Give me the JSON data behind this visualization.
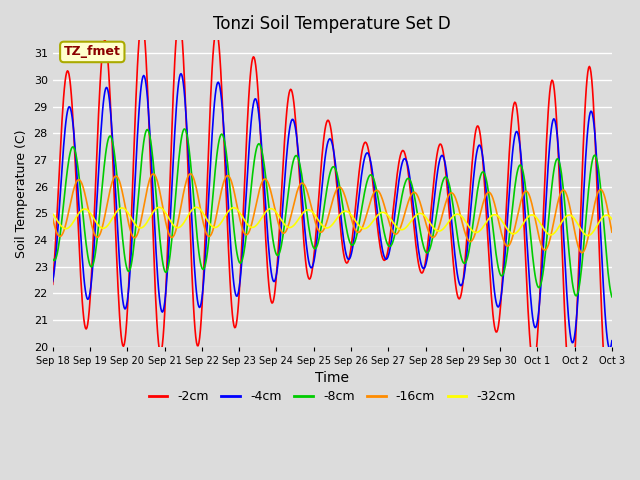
{
  "title": "Tonzi Soil Temperature Set D",
  "xlabel": "Time",
  "ylabel": "Soil Temperature (C)",
  "ylim": [
    20.0,
    31.5
  ],
  "yticks": [
    20.0,
    21.0,
    22.0,
    23.0,
    24.0,
    25.0,
    26.0,
    27.0,
    28.0,
    29.0,
    30.0,
    31.0
  ],
  "plot_bg_color": "#dcdcdc",
  "grid_color": "white",
  "annotation_text": "TZ_fmet",
  "annotation_color": "#8b0000",
  "annotation_bg": "#ffffcc",
  "annotation_border": "#aaaa00",
  "series_colors": [
    "#ff0000",
    "#0000ff",
    "#00cc00",
    "#ff8c00",
    "#ffff00"
  ],
  "series_labels": [
    "-2cm",
    "-4cm",
    "-8cm",
    "-16cm",
    "-32cm"
  ],
  "n_days": 15,
  "x_tick_labels": [
    "Sep 18",
    "Sep 19",
    "Sep 20",
    "Sep 21",
    "Sep 22",
    "Sep 23",
    "Sep 24",
    "Sep 25",
    "Sep 26",
    "Sep 27",
    "Sep 28",
    "Sep 29",
    "Sep 30",
    "Oct 1",
    "Oct 2",
    "Oct 3"
  ],
  "points_per_day": 48
}
